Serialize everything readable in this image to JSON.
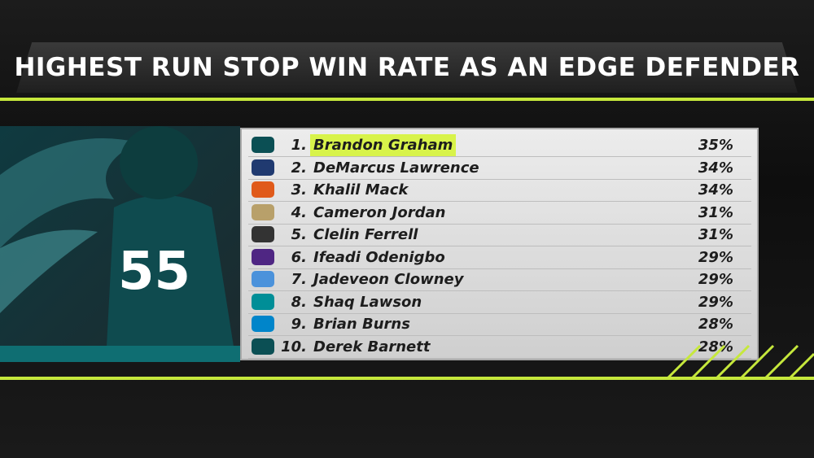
{
  "header": {
    "title": "HIGHEST RUN STOP WIN RATE AS AN EDGE DEFENDER"
  },
  "table": {
    "rows": [
      [
        "1.",
        "Brandon Graham",
        "35%"
      ],
      [
        "2.",
        "DeMarcus Lawrence",
        "34%"
      ],
      [
        "3.",
        "Khalil Mack",
        "34%"
      ],
      [
        "4.",
        "Cameron Jordan",
        "31%"
      ],
      [
        "5.",
        "Clelin Ferrell",
        "31%"
      ],
      [
        "6.",
        "Ifeadi Odenigbo",
        "29%"
      ],
      [
        "7.",
        "Jadeveon Clowney",
        "29%"
      ],
      [
        "8.",
        "Shaq Lawson",
        "29%"
      ],
      [
        "9.",
        "Brian Burns",
        "28%"
      ],
      [
        "10.",
        "Derek Barnett",
        "28%"
      ]
    ]
  }
}
